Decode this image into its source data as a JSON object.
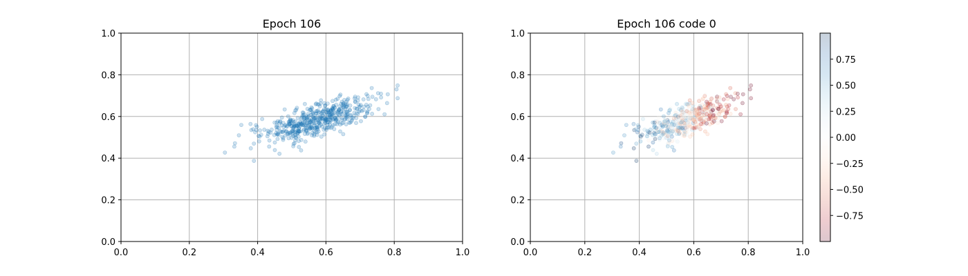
{
  "chart_data": [
    {
      "type": "scatter",
      "title": "Epoch 106",
      "xlabel": "",
      "ylabel": "",
      "xlim": [
        0.0,
        1.0
      ],
      "ylim": [
        0.0,
        1.0
      ],
      "xticks": [
        "0.0",
        "0.2",
        "0.4",
        "0.6",
        "0.8",
        "1.0"
      ],
      "yticks": [
        "0.0",
        "0.2",
        "0.4",
        "0.6",
        "0.8",
        "1.0"
      ],
      "grid": true,
      "marker_color": "#1f77b4",
      "marker_alpha": 0.2,
      "points_summary": {
        "count_approx": 500,
        "center": [
          0.57,
          0.58
        ],
        "x_range": [
          0.24,
          0.81
        ],
        "y_range": [
          0.31,
          0.79
        ]
      }
    },
    {
      "type": "scatter",
      "title": "Epoch 106 code 0",
      "xlabel": "",
      "ylabel": "",
      "xlim": [
        0.0,
        1.0
      ],
      "ylim": [
        0.0,
        1.0
      ],
      "xticks": [
        "0.0",
        "0.2",
        "0.4",
        "0.6",
        "0.8",
        "1.0"
      ],
      "yticks": [
        "0.0",
        "0.2",
        "0.4",
        "0.6",
        "0.8",
        "1.0"
      ],
      "grid": true,
      "colormap": "RdBu",
      "marker_alpha": 0.2,
      "colorbar": {
        "range": [
          -1.0,
          1.0
        ],
        "ticks": [
          "0.75",
          "0.50",
          "0.25",
          "0.00",
          "−0.25",
          "−0.50",
          "−0.75"
        ],
        "tick_values": [
          0.75,
          0.5,
          0.25,
          0.0,
          -0.25,
          -0.5,
          -0.75
        ]
      }
    }
  ]
}
